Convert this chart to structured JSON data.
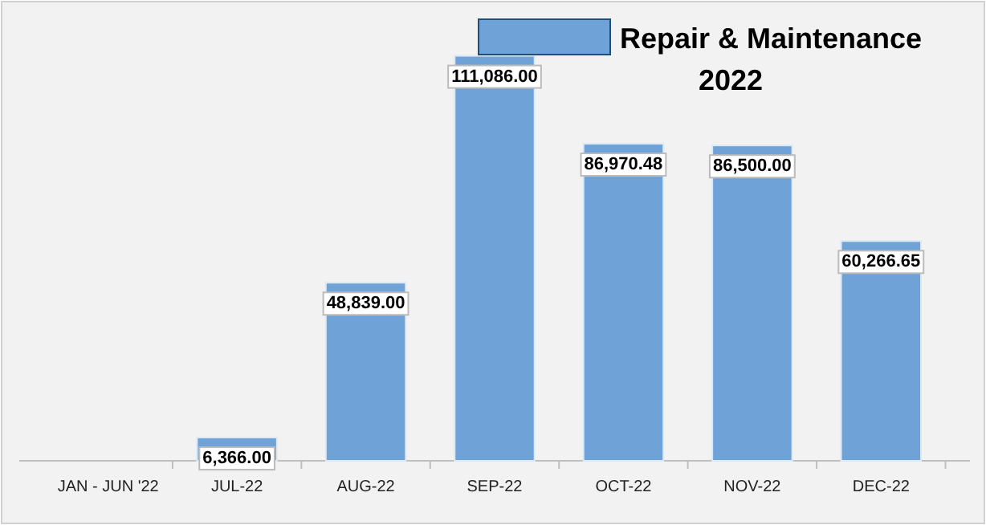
{
  "chart_data": {
    "type": "bar",
    "categories": [
      "JAN - JUN '22",
      "JUL-22",
      "AUG-22",
      "SEP-22",
      "OCT-22",
      "NOV-22",
      "DEC-22"
    ],
    "series": [
      {
        "name": "Repair & Maintenance 2022",
        "color": "#6fa3d8",
        "values": [
          null,
          6366,
          48839,
          111086,
          86970.48,
          86500,
          60266.65
        ],
        "value_labels": [
          null,
          "6,366.00",
          "48,839.00",
          "111,086.00",
          "86,970.48",
          "86,500.00",
          "60,266.65"
        ]
      }
    ],
    "ylim": [
      0,
      122000
    ],
    "tick_labels": "x",
    "legend": "top right",
    "grid": false
  }
}
